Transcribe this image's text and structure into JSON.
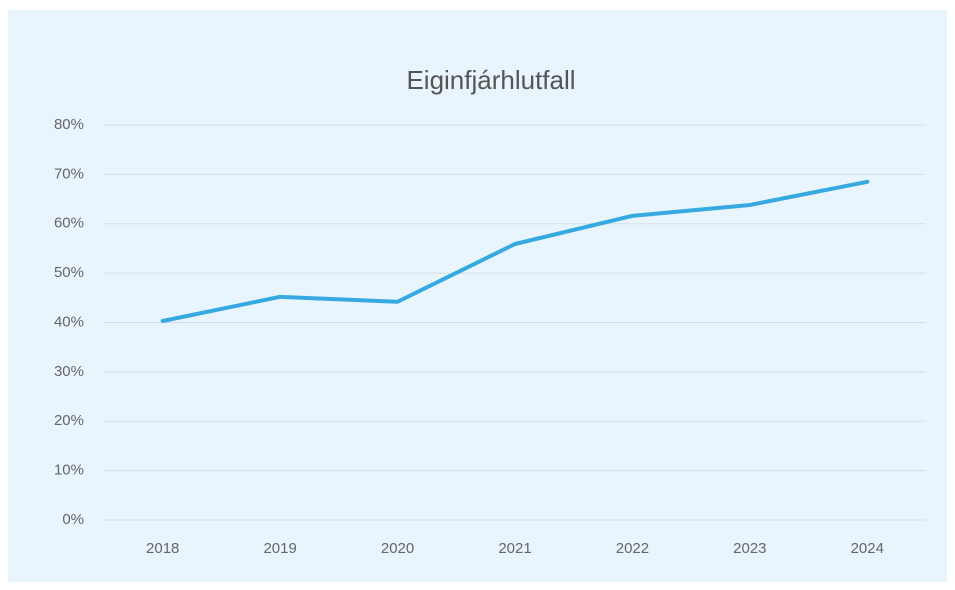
{
  "chart_data": {
    "type": "line",
    "title": "Eiginfjárhlutfall",
    "categories": [
      "2018",
      "2019",
      "2020",
      "2021",
      "2022",
      "2023",
      "2024"
    ],
    "series": [
      {
        "color": "#36a9e1",
        "values": [
          40.3,
          45.2,
          44.2,
          55.9,
          61.6,
          63.8,
          68.5
        ]
      }
    ],
    "ylim": [
      0,
      80
    ],
    "yticks": [
      {
        "value": 0,
        "label": "0%"
      },
      {
        "value": 10,
        "label": "10%"
      },
      {
        "value": 20,
        "label": "20%"
      },
      {
        "value": 30,
        "label": "30%"
      },
      {
        "value": 40,
        "label": "40%"
      },
      {
        "value": 50,
        "label": "50%"
      },
      {
        "value": 60,
        "label": "60%"
      },
      {
        "value": 70,
        "label": "70%"
      },
      {
        "value": 80,
        "label": "80%"
      }
    ],
    "grid": true
  }
}
